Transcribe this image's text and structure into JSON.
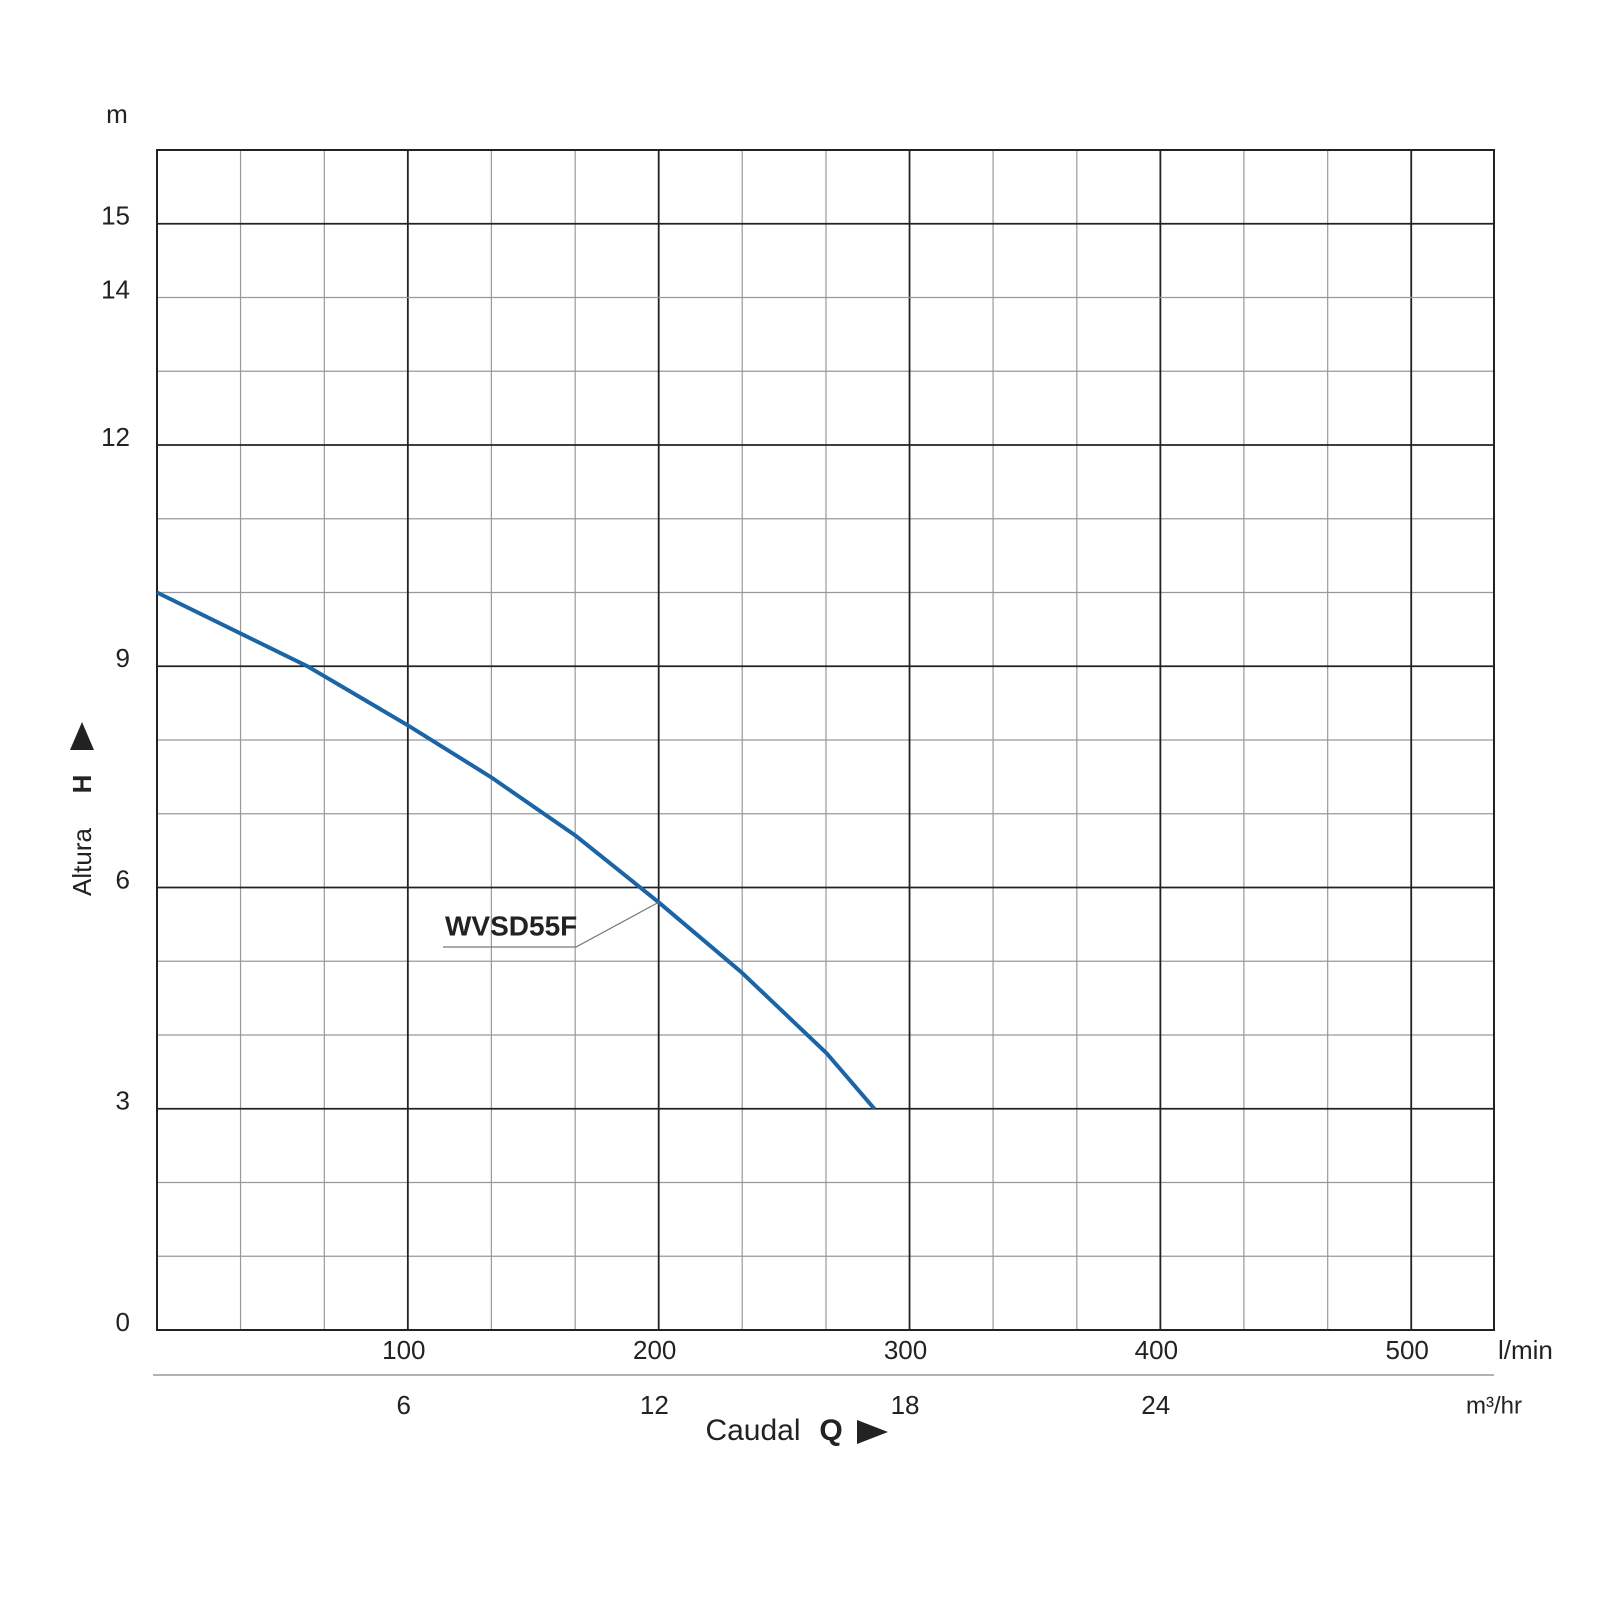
{
  "chart_data": {
    "type": "line",
    "x_unit": "l/min",
    "x2_unit": "m³/hr",
    "y_unit": "m",
    "ylabel": "Altura",
    "ylabel_symbol": "H",
    "xlabel": "Caudal",
    "xlabel_symbol": "Q",
    "x": [
      0,
      60,
      100,
      133,
      167,
      200,
      233,
      267,
      286
    ],
    "series": [
      {
        "name": "WVSD55F",
        "color": "#1a64a8",
        "values": [
          10,
          9,
          8.2,
          7.5,
          6.7,
          5.8,
          4.85,
          3.75,
          3
        ]
      }
    ],
    "xlim": [
      0,
      533
    ],
    "xticks": [
      100,
      200,
      300,
      400,
      500
    ],
    "x_minor_ticks": [
      33.3,
      66.7,
      133.3,
      166.7,
      233.3,
      266.7,
      333.3,
      366.7,
      433.3,
      466.7
    ],
    "x2lim": [
      0,
      32
    ],
    "x2ticks": [
      6,
      12,
      18,
      24
    ],
    "ylim": [
      0,
      16
    ],
    "yticks": [
      0,
      3,
      6,
      9,
      12,
      14,
      15
    ],
    "y_minor_ticks": [
      1,
      2,
      4,
      5,
      7,
      8,
      10,
      11,
      13
    ],
    "grid": true
  }
}
